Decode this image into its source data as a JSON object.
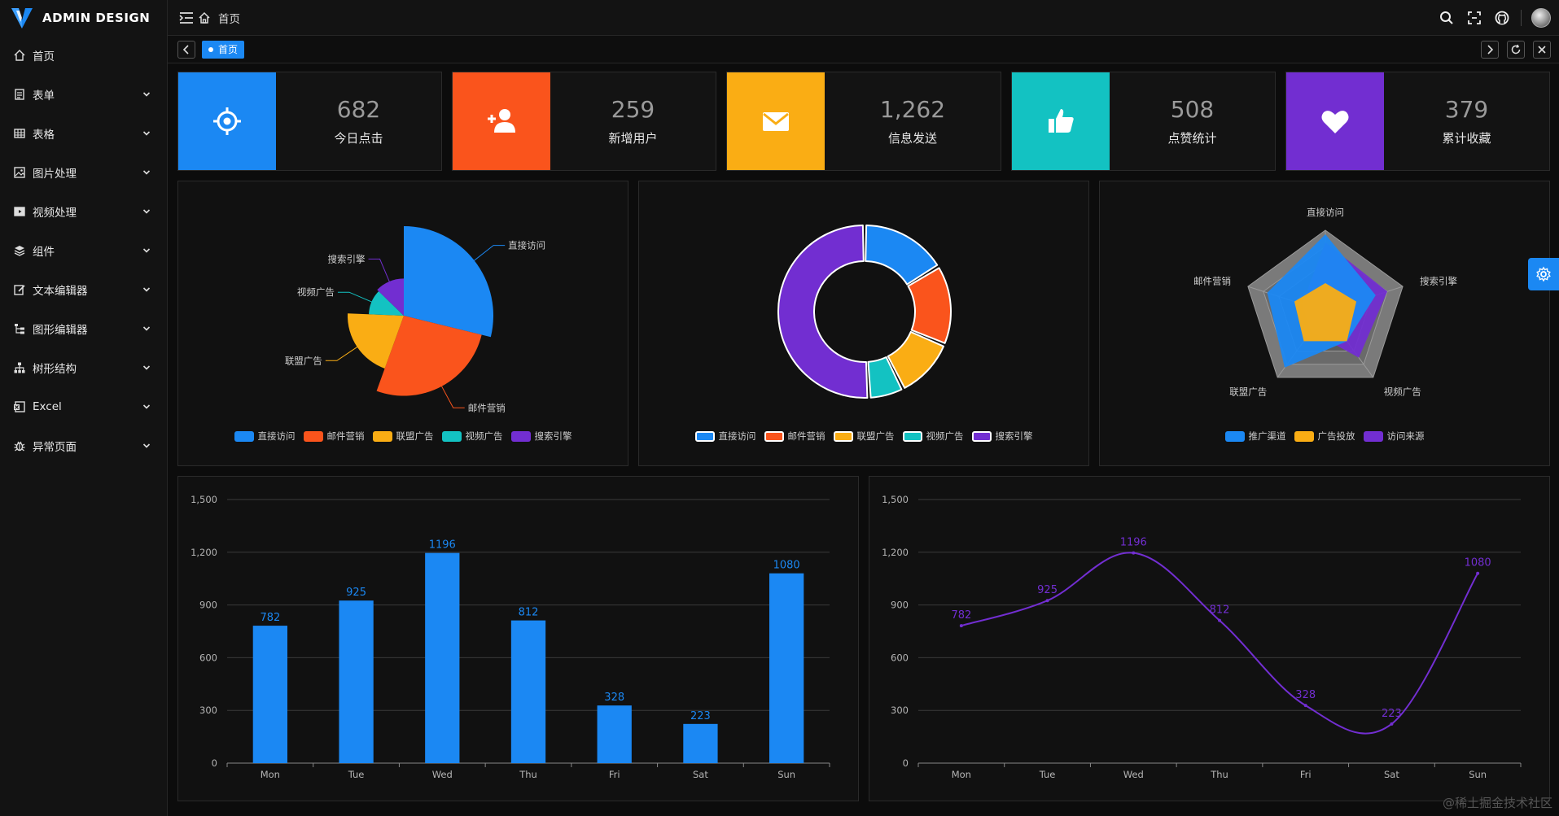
{
  "app": {
    "logo_text": "ADMIN DESIGN"
  },
  "sidebar": {
    "items": [
      {
        "label": "首页",
        "icon": "home-icon",
        "expandable": false
      },
      {
        "label": "表单",
        "icon": "form-icon",
        "expandable": true
      },
      {
        "label": "表格",
        "icon": "table-icon",
        "expandable": true
      },
      {
        "label": "图片处理",
        "icon": "image-icon",
        "expandable": true
      },
      {
        "label": "视频处理",
        "icon": "video-icon",
        "expandable": true
      },
      {
        "label": "组件",
        "icon": "layers-icon",
        "expandable": true
      },
      {
        "label": "文本编辑器",
        "icon": "edit-icon",
        "expandable": true
      },
      {
        "label": "图形编辑器",
        "icon": "flowchart-icon",
        "expandable": true
      },
      {
        "label": "树形结构",
        "icon": "tree-icon",
        "expandable": true
      },
      {
        "label": "Excel",
        "icon": "excel-icon",
        "expandable": true
      },
      {
        "label": "异常页面",
        "icon": "bug-icon",
        "expandable": true
      }
    ]
  },
  "header": {
    "breadcrumb": "首页"
  },
  "tabs": {
    "active_label": "首页"
  },
  "stats": [
    {
      "value": "682",
      "label": "今日点击",
      "color": "#1b88f3",
      "icon": "target-icon"
    },
    {
      "value": "259",
      "label": "新增用户",
      "color": "#fa541c",
      "icon": "add-user-icon"
    },
    {
      "value": "1,262",
      "label": "信息发送",
      "color": "#faad14",
      "icon": "mail-icon"
    },
    {
      "value": "508",
      "label": "点赞统计",
      "color": "#13c2c2",
      "icon": "thumbs-up-icon"
    },
    {
      "value": "379",
      "label": "累计收藏",
      "color": "#722ed1",
      "icon": "heart-icon"
    }
  ],
  "colors": {
    "blue": "#1b88f3",
    "red": "#fa541c",
    "orange": "#faad14",
    "cyan": "#13c2c2",
    "purple": "#722ed1"
  },
  "watermark": "@稀土掘金技术社区",
  "chart_data": [
    {
      "type": "pie",
      "subtype": "rose",
      "categories": [
        "直接访问",
        "邮件营销",
        "联盟广告",
        "视频广告",
        "搜索引擎"
      ],
      "values": [
        335,
        310,
        234,
        135,
        148
      ],
      "legend_position": "bottom"
    },
    {
      "type": "pie",
      "subtype": "donut",
      "categories": [
        "直接访问",
        "邮件营销",
        "联盟广告",
        "视频广告",
        "搜索引擎"
      ],
      "values": [
        335,
        310,
        234,
        135,
        1048
      ],
      "legend_position": "bottom"
    },
    {
      "type": "radar",
      "indicators": [
        "直接访问",
        "搜索引擎",
        "视频广告",
        "联盟广告",
        "邮件营销"
      ],
      "series": [
        {
          "name": "推广渠道",
          "values": [
            0.95,
            0.65,
            0.45,
            0.85,
            0.75
          ]
        },
        {
          "name": "广告投放",
          "values": [
            0.35,
            0.4,
            0.45,
            0.45,
            0.4
          ]
        },
        {
          "name": "访问来源",
          "values": [
            0.85,
            0.8,
            0.7,
            0.3,
            0.3
          ]
        }
      ],
      "legend_position": "bottom"
    },
    {
      "type": "bar",
      "categories": [
        "Mon",
        "Tue",
        "Wed",
        "Thu",
        "Fri",
        "Sat",
        "Sun"
      ],
      "values": [
        782,
        925,
        1196,
        812,
        328,
        223,
        1080
      ],
      "yticks": [
        "0",
        "300",
        "600",
        "900",
        "1,200",
        "1,500"
      ],
      "ylim": [
        0,
        1500
      ],
      "grid": true
    },
    {
      "type": "line",
      "smooth": true,
      "categories": [
        "Mon",
        "Tue",
        "Wed",
        "Thu",
        "Fri",
        "Sat",
        "Sun"
      ],
      "values": [
        782,
        925,
        1196,
        812,
        328,
        223,
        1080
      ],
      "yticks": [
        "0",
        "300",
        "600",
        "900",
        "1,200",
        "1,500"
      ],
      "ylim": [
        0,
        1500
      ],
      "grid": true
    }
  ]
}
